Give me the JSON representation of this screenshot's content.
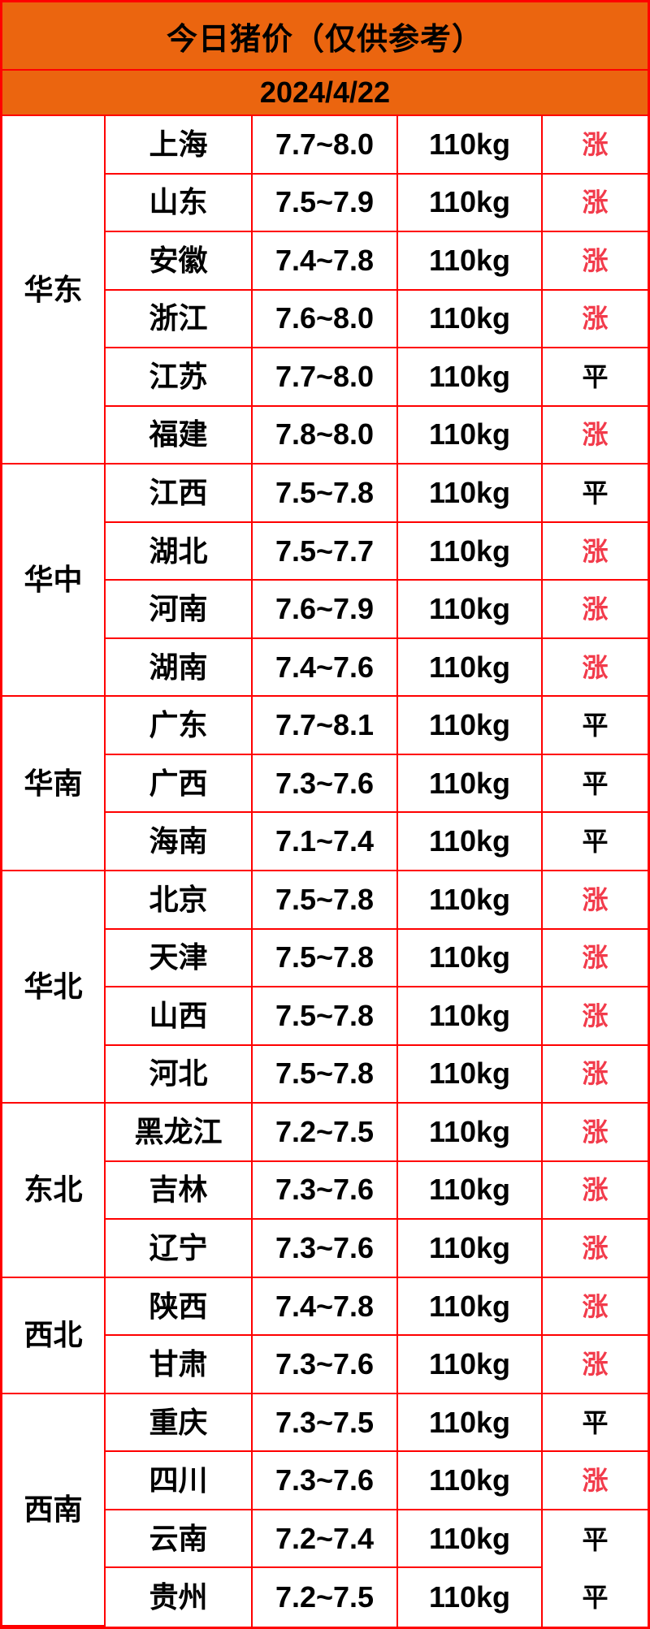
{
  "header": {
    "title": "今日猪价（仅供参考）",
    "date": "2024/4/22"
  },
  "colors": {
    "header_bg": "#eb650f",
    "border": "#ff0000",
    "up": "#f23b4b",
    "flat": "#000000"
  },
  "status_values": {
    "up": "涨",
    "flat": "平"
  },
  "regions": [
    {
      "name": "华东",
      "rows": [
        {
          "province": "上海",
          "price": "7.7~8.0",
          "weight": "110kg",
          "status": "涨"
        },
        {
          "province": "山东",
          "price": "7.5~7.9",
          "weight": "110kg",
          "status": "涨"
        },
        {
          "province": "安徽",
          "price": "7.4~7.8",
          "weight": "110kg",
          "status": "涨"
        },
        {
          "province": "浙江",
          "price": "7.6~8.0",
          "weight": "110kg",
          "status": "涨"
        },
        {
          "province": "江苏",
          "price": "7.7~8.0",
          "weight": "110kg",
          "status": "平"
        },
        {
          "province": "福建",
          "price": "7.8~8.0",
          "weight": "110kg",
          "status": "涨"
        }
      ]
    },
    {
      "name": "华中",
      "rows": [
        {
          "province": "江西",
          "price": "7.5~7.8",
          "weight": "110kg",
          "status": "平"
        },
        {
          "province": "湖北",
          "price": "7.5~7.7",
          "weight": "110kg",
          "status": "涨"
        },
        {
          "province": "河南",
          "price": "7.6~7.9",
          "weight": "110kg",
          "status": "涨"
        },
        {
          "province": "湖南",
          "price": "7.4~7.6",
          "weight": "110kg",
          "status": "涨"
        }
      ]
    },
    {
      "name": "华南",
      "rows": [
        {
          "province": "广东",
          "price": "7.7~8.1",
          "weight": "110kg",
          "status": "平"
        },
        {
          "province": "广西",
          "price": "7.3~7.6",
          "weight": "110kg",
          "status": "平"
        },
        {
          "province": "海南",
          "price": "7.1~7.4",
          "weight": "110kg",
          "status": "平"
        }
      ]
    },
    {
      "name": "华北",
      "rows": [
        {
          "province": "北京",
          "price": "7.5~7.8",
          "weight": "110kg",
          "status": "涨"
        },
        {
          "province": "天津",
          "price": "7.5~7.8",
          "weight": "110kg",
          "status": "涨"
        },
        {
          "province": "山西",
          "price": "7.5~7.8",
          "weight": "110kg",
          "status": "涨"
        },
        {
          "province": "河北",
          "price": "7.5~7.8",
          "weight": "110kg",
          "status": "涨"
        }
      ]
    },
    {
      "name": "东北",
      "rows": [
        {
          "province": "黑龙江",
          "price": "7.2~7.5",
          "weight": "110kg",
          "status": "涨"
        },
        {
          "province": "吉林",
          "price": "7.3~7.6",
          "weight": "110kg",
          "status": "涨"
        },
        {
          "province": "辽宁",
          "price": "7.3~7.6",
          "weight": "110kg",
          "status": "涨"
        }
      ]
    },
    {
      "name": "西北",
      "rows": [
        {
          "province": "陕西",
          "price": "7.4~7.8",
          "weight": "110kg",
          "status": "涨"
        },
        {
          "province": "甘肃",
          "price": "7.3~7.6",
          "weight": "110kg",
          "status": "涨"
        }
      ]
    },
    {
      "name": "西南",
      "rows": [
        {
          "province": "重庆",
          "price": "7.3~7.5",
          "weight": "110kg",
          "status": "平"
        },
        {
          "province": "四川",
          "price": "7.3~7.6",
          "weight": "110kg",
          "status": "涨"
        },
        {
          "province": "云南",
          "price": "7.2~7.4",
          "weight": "110kg",
          "status": "平"
        },
        {
          "province": "贵州",
          "price": "7.2~7.5",
          "weight": "110kg",
          "status": "平"
        }
      ]
    }
  ],
  "chart_data": {
    "type": "table",
    "title": "今日猪价（仅供参考）",
    "subtitle": "2024/4/22",
    "columns": [
      "region",
      "province",
      "price_range",
      "weight",
      "trend"
    ],
    "rows": [
      [
        "华东",
        "上海",
        "7.7~8.0",
        "110kg",
        "涨"
      ],
      [
        "华东",
        "山东",
        "7.5~7.9",
        "110kg",
        "涨"
      ],
      [
        "华东",
        "安徽",
        "7.4~7.8",
        "110kg",
        "涨"
      ],
      [
        "华东",
        "浙江",
        "7.6~8.0",
        "110kg",
        "涨"
      ],
      [
        "华东",
        "江苏",
        "7.7~8.0",
        "110kg",
        "平"
      ],
      [
        "华东",
        "福建",
        "7.8~8.0",
        "110kg",
        "涨"
      ],
      [
        "华中",
        "江西",
        "7.5~7.8",
        "110kg",
        "平"
      ],
      [
        "华中",
        "湖北",
        "7.5~7.7",
        "110kg",
        "涨"
      ],
      [
        "华中",
        "河南",
        "7.6~7.9",
        "110kg",
        "涨"
      ],
      [
        "华中",
        "湖南",
        "7.4~7.6",
        "110kg",
        "涨"
      ],
      [
        "华南",
        "广东",
        "7.7~8.1",
        "110kg",
        "平"
      ],
      [
        "华南",
        "广西",
        "7.3~7.6",
        "110kg",
        "平"
      ],
      [
        "华南",
        "海南",
        "7.1~7.4",
        "110kg",
        "平"
      ],
      [
        "华北",
        "北京",
        "7.5~7.8",
        "110kg",
        "涨"
      ],
      [
        "华北",
        "天津",
        "7.5~7.8",
        "110kg",
        "涨"
      ],
      [
        "华北",
        "山西",
        "7.5~7.8",
        "110kg",
        "涨"
      ],
      [
        "华北",
        "河北",
        "7.5~7.8",
        "110kg",
        "涨"
      ],
      [
        "东北",
        "黑龙江",
        "7.2~7.5",
        "110kg",
        "涨"
      ],
      [
        "东北",
        "吉林",
        "7.3~7.6",
        "110kg",
        "涨"
      ],
      [
        "东北",
        "辽宁",
        "7.3~7.6",
        "110kg",
        "涨"
      ],
      [
        "西北",
        "陕西",
        "7.4~7.8",
        "110kg",
        "涨"
      ],
      [
        "西北",
        "甘肃",
        "7.3~7.6",
        "110kg",
        "涨"
      ],
      [
        "西南",
        "重庆",
        "7.3~7.5",
        "110kg",
        "平"
      ],
      [
        "西南",
        "四川",
        "7.3~7.6",
        "110kg",
        "涨"
      ],
      [
        "西南",
        "云南",
        "7.2~7.4",
        "110kg",
        "平"
      ],
      [
        "西南",
        "贵州",
        "7.2~7.5",
        "110kg",
        "平"
      ]
    ]
  }
}
